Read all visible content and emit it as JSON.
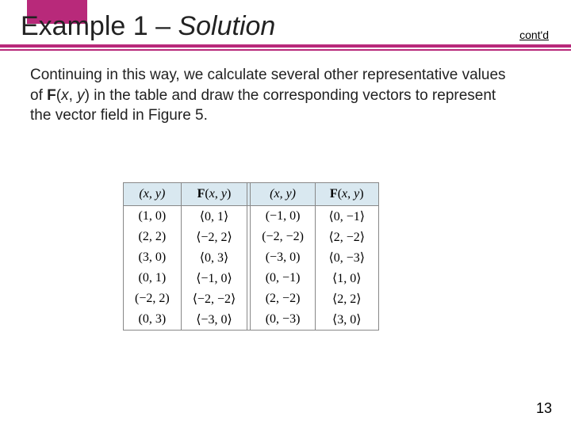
{
  "header": {
    "title_prefix": "Example 1 – ",
    "title_em": "Solution",
    "contd": "cont'd",
    "accent_color": "#b8297a"
  },
  "paragraph": {
    "p1": "Continuing in this way, we calculate several other representative values of ",
    "p2": "F",
    "p3": "(",
    "p4": "x",
    "p5": ", ",
    "p6": "y",
    "p7": ") in the table and draw the corresponding vectors to represent the vector field in Figure 5."
  },
  "table": {
    "headers": {
      "h1": "(x, y)",
      "h2": "F(x, y)",
      "h3": "(x, y)",
      "h4": "F(x, y)"
    },
    "rows": [
      {
        "c1": "(1, 0)",
        "c2": "⟨0, 1⟩",
        "c3": "(−1, 0)",
        "c4": "⟨0, −1⟩"
      },
      {
        "c1": "(2, 2)",
        "c2": "⟨−2, 2⟩",
        "c3": "(−2, −2)",
        "c4": "⟨2, −2⟩"
      },
      {
        "c1": "(3, 0)",
        "c2": "⟨0, 3⟩",
        "c3": "(−3, 0)",
        "c4": "⟨0, −3⟩"
      },
      {
        "c1": "(0, 1)",
        "c2": "⟨−1, 0⟩",
        "c3": "(0, −1)",
        "c4": "⟨1, 0⟩"
      },
      {
        "c1": "(−2, 2)",
        "c2": "⟨−2, −2⟩",
        "c3": "(2, −2)",
        "c4": "⟨2, 2⟩"
      },
      {
        "c1": "(0, 3)",
        "c2": "⟨−3, 0⟩",
        "c3": "(0, −3)",
        "c4": "⟨3, 0⟩"
      }
    ]
  },
  "page_number": "13"
}
